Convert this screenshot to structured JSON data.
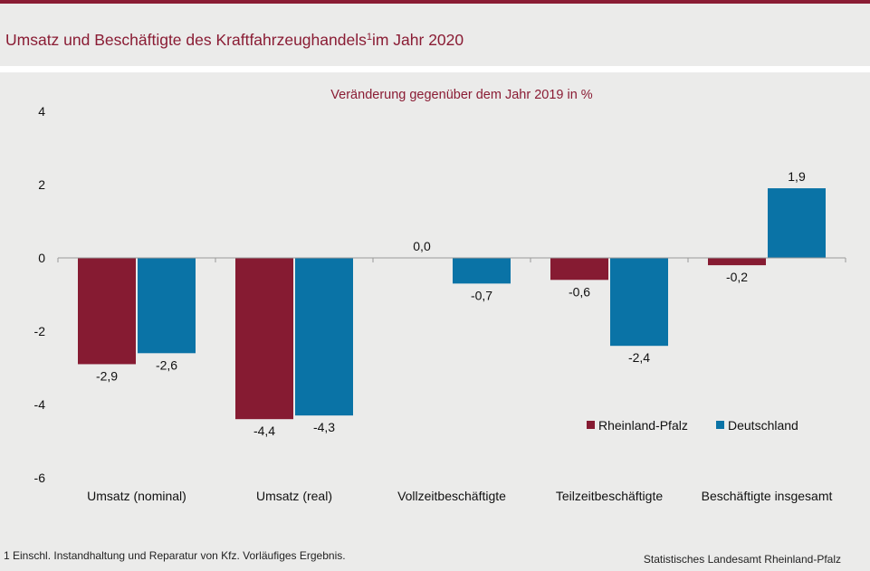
{
  "header": {
    "title": "Umsatz und Beschäftigte des Kraftfahrzeughandels",
    "title_sup": "1",
    "title_suffix": "im Jahr 2020"
  },
  "colors": {
    "accent": "#8a1c34",
    "rheinland_pfalz": "#861b32",
    "deutschland": "#0a73a6"
  },
  "chart_data": {
    "type": "bar",
    "subtitle": "Veränderung gegenüber dem Jahr 2019 in %",
    "categories": [
      "Umsatz (nominal)",
      "Umsatz (real)",
      "Vollzeitbeschäftigte",
      "Teilzeitbeschäftigte",
      "Beschäftigte insgesamt"
    ],
    "series": [
      {
        "name": "Rheinland-Pfalz",
        "values": [
          -2.9,
          -4.4,
          0.0,
          -0.6,
          -0.2
        ],
        "labels": [
          "-2,9",
          "-4,4",
          "0,0",
          "-0,6",
          "-0,2"
        ]
      },
      {
        "name": "Deutschland",
        "values": [
          -2.6,
          -4.3,
          -0.7,
          -2.4,
          1.9
        ],
        "labels": [
          "-2,6",
          "-4,3",
          "-0,7",
          "-2,4",
          "1,9"
        ]
      }
    ],
    "ylim": [
      -6,
      4
    ],
    "yticks": [
      "4",
      "2",
      "0",
      "-2",
      "-4",
      "-6"
    ],
    "ytick_values": [
      4,
      2,
      0,
      -2,
      -4,
      -6
    ],
    "grid": false,
    "legend": "bottom-right"
  },
  "footnote": "1 Einschl. Instandhaltung und Reparatur von Kfz. Vorläufiges Ergebnis.",
  "source": "Statistisches Landesamt Rheinland-Pfalz"
}
